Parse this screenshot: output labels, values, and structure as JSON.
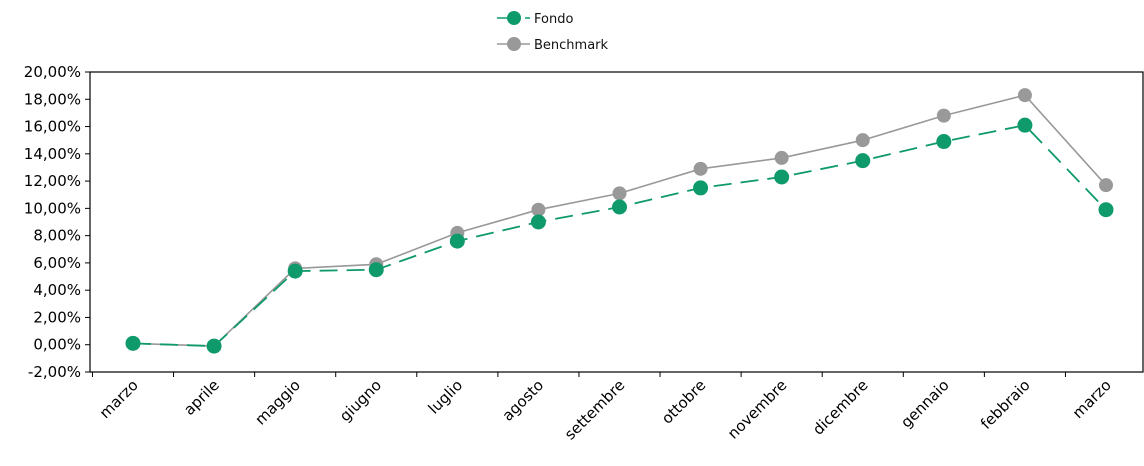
{
  "chart_data": {
    "type": "line",
    "categories": [
      "marzo",
      "aprile",
      "maggio",
      "giugno",
      "luglio",
      "agosto",
      "settembre",
      "ottobre",
      "novembre",
      "dicembre",
      "gennaio",
      "febbraio",
      "marzo"
    ],
    "series": [
      {
        "name": "Fondo",
        "color": "#0e9a6a",
        "style": "dashed",
        "values": [
          0.1,
          -0.1,
          5.4,
          5.5,
          7.6,
          9.0,
          10.1,
          11.5,
          12.3,
          13.5,
          14.9,
          16.1,
          9.9
        ]
      },
      {
        "name": "Benchmark",
        "color": "#999999",
        "style": "solid",
        "values": [
          0.1,
          -0.1,
          5.6,
          5.9,
          8.2,
          9.9,
          11.1,
          12.9,
          13.7,
          15.0,
          16.8,
          18.3,
          11.7
        ]
      }
    ],
    "ylim": [
      -2,
      20
    ],
    "yticks": [
      "-2,00%",
      "0,00%",
      "2,00%",
      "4,00%",
      "6,00%",
      "8,00%",
      "10,00%",
      "12,00%",
      "14,00%",
      "16,00%",
      "18,00%",
      "20,00%"
    ],
    "title": "",
    "xlabel": "",
    "ylabel": "",
    "legend_position": "top-center",
    "grid": false
  }
}
